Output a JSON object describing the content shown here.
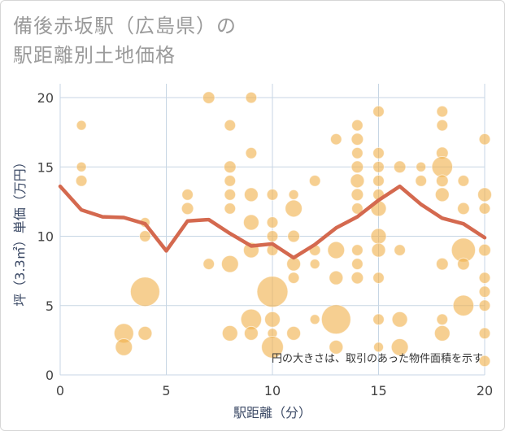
{
  "title": "備後赤坂駅（広島県）の\n駅距離別土地価格",
  "chart_data": {
    "type": "scatter",
    "title": "備後赤坂駅（広島県）の\n駅距離別土地価格",
    "xlabel": "駅距離（分）",
    "ylabel": "坪（3.3㎡）単価（万円）",
    "xlim": [
      0,
      20
    ],
    "ylim": [
      0,
      21
    ],
    "xticks": [
      0,
      5,
      10,
      15,
      20
    ],
    "yticks": [
      0,
      5,
      10,
      15,
      20
    ],
    "grid": true,
    "note": "円の大きさは、取引のあった物件面積を示す",
    "colors": {
      "bubble": "#F0B24E",
      "line": "#D4694F",
      "grid": "#c7d6e4"
    },
    "points": [
      {
        "x": 1,
        "y": 18,
        "s": 1
      },
      {
        "x": 1,
        "y": 15,
        "s": 1
      },
      {
        "x": 1,
        "y": 14,
        "s": 1.3
      },
      {
        "x": 3,
        "y": 3,
        "s": 4
      },
      {
        "x": 3,
        "y": 2,
        "s": 3
      },
      {
        "x": 4,
        "y": 11,
        "s": 1
      },
      {
        "x": 4,
        "y": 10,
        "s": 1.3
      },
      {
        "x": 4,
        "y": 6,
        "s": 9
      },
      {
        "x": 4,
        "y": 3,
        "s": 2
      },
      {
        "x": 6,
        "y": 13,
        "s": 1.3
      },
      {
        "x": 6,
        "y": 12,
        "s": 1.5
      },
      {
        "x": 7,
        "y": 20,
        "s": 1.5
      },
      {
        "x": 7,
        "y": 8,
        "s": 1.3
      },
      {
        "x": 8,
        "y": 18,
        "s": 1.3
      },
      {
        "x": 8,
        "y": 15,
        "s": 1.5
      },
      {
        "x": 8,
        "y": 14,
        "s": 1.3
      },
      {
        "x": 8,
        "y": 13,
        "s": 1.3
      },
      {
        "x": 8,
        "y": 12,
        "s": 1.3
      },
      {
        "x": 8,
        "y": 8,
        "s": 3
      },
      {
        "x": 8,
        "y": 3,
        "s": 2.5
      },
      {
        "x": 9,
        "y": 20,
        "s": 1.3
      },
      {
        "x": 9,
        "y": 16,
        "s": 1.3
      },
      {
        "x": 9,
        "y": 13,
        "s": 2
      },
      {
        "x": 9,
        "y": 11,
        "s": 2.5
      },
      {
        "x": 9,
        "y": 9,
        "s": 2.5
      },
      {
        "x": 9,
        "y": 4,
        "s": 4.5
      },
      {
        "x": 9,
        "y": 3,
        "s": 2
      },
      {
        "x": 10,
        "y": 13,
        "s": 1.3
      },
      {
        "x": 10,
        "y": 11,
        "s": 1.3
      },
      {
        "x": 10,
        "y": 10,
        "s": 1.3
      },
      {
        "x": 10,
        "y": 9,
        "s": 1.3
      },
      {
        "x": 10,
        "y": 6,
        "s": 10
      },
      {
        "x": 10,
        "y": 4,
        "s": 2.5
      },
      {
        "x": 10,
        "y": 3,
        "s": 1
      },
      {
        "x": 10,
        "y": 2,
        "s": 5
      },
      {
        "x": 11,
        "y": 13,
        "s": 1
      },
      {
        "x": 11,
        "y": 12,
        "s": 3
      },
      {
        "x": 11,
        "y": 10,
        "s": 1.5
      },
      {
        "x": 11,
        "y": 8,
        "s": 2
      },
      {
        "x": 11,
        "y": 7,
        "s": 1.3
      },
      {
        "x": 11,
        "y": 3,
        "s": 2
      },
      {
        "x": 12,
        "y": 14,
        "s": 1.3
      },
      {
        "x": 12,
        "y": 9,
        "s": 1.3
      },
      {
        "x": 12,
        "y": 8,
        "s": 1
      },
      {
        "x": 12,
        "y": 4,
        "s": 1
      },
      {
        "x": 13,
        "y": 17,
        "s": 1.3
      },
      {
        "x": 13,
        "y": 9,
        "s": 3
      },
      {
        "x": 13,
        "y": 7,
        "s": 2
      },
      {
        "x": 13,
        "y": 4,
        "s": 9
      },
      {
        "x": 13,
        "y": 2,
        "s": 2
      },
      {
        "x": 14,
        "y": 18,
        "s": 1.3
      },
      {
        "x": 14,
        "y": 17,
        "s": 1.5
      },
      {
        "x": 14,
        "y": 16,
        "s": 1.3
      },
      {
        "x": 14,
        "y": 15,
        "s": 1.5
      },
      {
        "x": 14,
        "y": 14,
        "s": 2
      },
      {
        "x": 14,
        "y": 13,
        "s": 1.5
      },
      {
        "x": 14,
        "y": 12,
        "s": 1.3
      },
      {
        "x": 14,
        "y": 9,
        "s": 1.3
      },
      {
        "x": 14,
        "y": 8,
        "s": 1.3
      },
      {
        "x": 14,
        "y": 7,
        "s": 1.5
      },
      {
        "x": 15,
        "y": 19,
        "s": 1.3
      },
      {
        "x": 15,
        "y": 16,
        "s": 1.3
      },
      {
        "x": 15,
        "y": 15,
        "s": 1.3
      },
      {
        "x": 15,
        "y": 14,
        "s": 1.3
      },
      {
        "x": 15,
        "y": 13,
        "s": 1.3
      },
      {
        "x": 15,
        "y": 12,
        "s": 2.5
      },
      {
        "x": 15,
        "y": 10,
        "s": 2.5
      },
      {
        "x": 15,
        "y": 9,
        "s": 2
      },
      {
        "x": 15,
        "y": 7,
        "s": 1.3
      },
      {
        "x": 15,
        "y": 4,
        "s": 1.3
      },
      {
        "x": 15,
        "y": 2,
        "s": 1
      },
      {
        "x": 16,
        "y": 15,
        "s": 1.5
      },
      {
        "x": 16,
        "y": 9,
        "s": 1.3
      },
      {
        "x": 16,
        "y": 4,
        "s": 2.5
      },
      {
        "x": 16,
        "y": 2,
        "s": 3
      },
      {
        "x": 17,
        "y": 15,
        "s": 1
      },
      {
        "x": 17,
        "y": 14,
        "s": 1.3
      },
      {
        "x": 18,
        "y": 19,
        "s": 1.3
      },
      {
        "x": 18,
        "y": 18,
        "s": 1.3
      },
      {
        "x": 18,
        "y": 16,
        "s": 1.5
      },
      {
        "x": 18,
        "y": 15,
        "s": 4.5
      },
      {
        "x": 18,
        "y": 14,
        "s": 1.5
      },
      {
        "x": 18,
        "y": 13,
        "s": 2
      },
      {
        "x": 18,
        "y": 8,
        "s": 1.5
      },
      {
        "x": 18,
        "y": 4,
        "s": 1.3
      },
      {
        "x": 18,
        "y": 3,
        "s": 2.5
      },
      {
        "x": 19,
        "y": 14,
        "s": 1.3
      },
      {
        "x": 19,
        "y": 12,
        "s": 1.5
      },
      {
        "x": 19,
        "y": 9,
        "s": 6
      },
      {
        "x": 19,
        "y": 8,
        "s": 1.5
      },
      {
        "x": 19,
        "y": 5,
        "s": 4.5
      },
      {
        "x": 20,
        "y": 17,
        "s": 1.3
      },
      {
        "x": 20,
        "y": 13,
        "s": 2
      },
      {
        "x": 20,
        "y": 12,
        "s": 1.3
      },
      {
        "x": 20,
        "y": 9,
        "s": 1.5
      },
      {
        "x": 20,
        "y": 7,
        "s": 1.3
      },
      {
        "x": 20,
        "y": 6,
        "s": 1.3
      },
      {
        "x": 20,
        "y": 5,
        "s": 1.3
      },
      {
        "x": 20,
        "y": 3,
        "s": 1.3
      },
      {
        "x": 20,
        "y": 1,
        "s": 1.3
      }
    ],
    "trend": {
      "x": [
        0,
        1,
        2,
        3,
        4,
        5,
        6,
        7,
        8,
        9,
        10,
        11,
        12,
        13,
        14,
        15,
        16,
        17,
        18,
        19,
        20
      ],
      "y": [
        13.6,
        11.9,
        11.4,
        11.35,
        10.9,
        8.95,
        11.1,
        11.2,
        10.2,
        9.3,
        9.45,
        8.45,
        9.4,
        10.6,
        11.4,
        12.6,
        13.6,
        12.3,
        11.3,
        10.9,
        9.9
      ]
    }
  }
}
